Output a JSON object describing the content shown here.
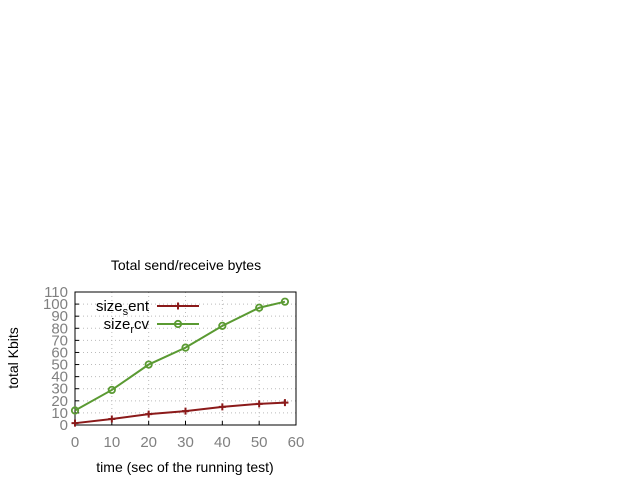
{
  "chart_data": {
    "type": "line",
    "title": "Total send/receive bytes",
    "xlabel": "time (sec of the running test)",
    "ylabel": "total Kbits",
    "xlim": [
      0,
      60
    ],
    "ylim": [
      0,
      110
    ],
    "xticks": [
      0,
      10,
      20,
      30,
      40,
      50,
      60
    ],
    "yticks": [
      0,
      10,
      20,
      30,
      40,
      50,
      60,
      70,
      80,
      90,
      100,
      110
    ],
    "grid": true,
    "legend_position": "top-left",
    "series": [
      {
        "name_main": "size",
        "name_sub": "s",
        "name_rest": "ent",
        "color": "#8b1a1a",
        "marker": "plus",
        "x": [
          0,
          10,
          20,
          30,
          40,
          50,
          57
        ],
        "y": [
          1.5,
          5,
          9,
          11.5,
          15,
          17.5,
          18.5
        ]
      },
      {
        "name_main": "size",
        "name_sub": "r",
        "name_rest": "cv",
        "color": "#5a9a32",
        "marker": "circle",
        "x": [
          0,
          10,
          20,
          30,
          40,
          50,
          57
        ],
        "y": [
          12,
          29,
          50,
          64,
          82,
          97,
          102
        ]
      }
    ]
  }
}
